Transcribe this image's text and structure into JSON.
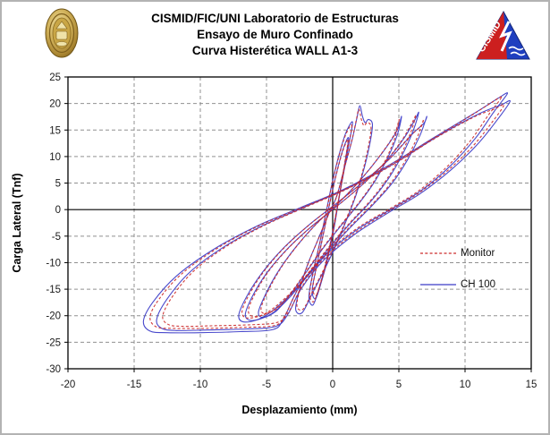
{
  "window": {
    "background": "#ffffff",
    "border_color": "#b3b3b3"
  },
  "header": {
    "line1": "CISMID/FIC/UNI Laboratorio de Estructuras",
    "line2": "Ensayo de Muro Confinado",
    "line3": "Curva Histerética WALL A1-3",
    "left_logo": "uni-gold-seal",
    "right_logo": "cismid-triangle-logo",
    "cismid_logo_text": "CISMID",
    "logo_colors": {
      "seal_gold": "#c9a646",
      "seal_dark": "#8a6a1f",
      "cismid_red": "#cc1f1f",
      "cismid_blue": "#1f3fbf"
    }
  },
  "chart_data": {
    "type": "line",
    "subtype": "hysteresis-loops",
    "title": "Curva Histerética WALL A1-3",
    "xlabel": "Desplazamiento (mm)",
    "ylabel": "Carga Lateral (Tnf)",
    "xlim": [
      -20,
      15
    ],
    "ylim": [
      -30,
      25
    ],
    "x_ticks": [
      -20,
      -15,
      -10,
      -5,
      0,
      5,
      10,
      15
    ],
    "y_ticks": [
      25,
      20,
      15,
      10,
      5,
      0,
      -5,
      -10,
      -15,
      -20,
      -25,
      -30
    ],
    "grid": "dashed",
    "grid_color": "#909090",
    "axis_color": "#000000",
    "legend": {
      "position": "inside-right",
      "entries": [
        {
          "label": "Monitor",
          "color": "#cc2b2b",
          "dash": true
        },
        {
          "label": "CH 100",
          "color": "#3a3ac8",
          "dash": false
        }
      ]
    },
    "series": [
      {
        "name": "CH 100",
        "color": "#3a3ac8",
        "style": "solid",
        "scale": 1.0
      },
      {
        "name": "Monitor",
        "color": "#cc2b2b",
        "style": "dashed",
        "scale": 0.965
      }
    ],
    "loops": [
      {
        "name": "cycle-13mm-a",
        "points": [
          [
            13.2,
            21.9
          ],
          [
            12.2,
            18.5
          ],
          [
            10.8,
            13.5
          ],
          [
            9.0,
            8.5
          ],
          [
            6.8,
            3.8
          ],
          [
            4.5,
            0.2
          ],
          [
            2.0,
            -3.5
          ],
          [
            -0.5,
            -8.5
          ],
          [
            -2.5,
            -14.5
          ],
          [
            -3.7,
            -20.5
          ],
          [
            -4.5,
            -22.6
          ],
          [
            -7.0,
            -23.0
          ],
          [
            -10.0,
            -23.2
          ],
          [
            -12.5,
            -23.2
          ],
          [
            -13.8,
            -22.9
          ],
          [
            -14.3,
            -21.0
          ],
          [
            -13.6,
            -17.5
          ],
          [
            -11.8,
            -12.5
          ],
          [
            -9.0,
            -7.5
          ],
          [
            -5.8,
            -3.2
          ],
          [
            -2.5,
            0.3
          ],
          [
            0.8,
            3.8
          ],
          [
            4.2,
            8.3
          ],
          [
            7.8,
            13.8
          ],
          [
            10.8,
            18.3
          ],
          [
            12.5,
            21.0
          ]
        ]
      },
      {
        "name": "cycle-13mm-b",
        "points": [
          [
            13.4,
            20.4
          ],
          [
            12.4,
            16.8
          ],
          [
            10.9,
            12.2
          ],
          [
            8.9,
            7.4
          ],
          [
            6.6,
            3.0
          ],
          [
            4.2,
            -0.6
          ],
          [
            1.7,
            -4.6
          ],
          [
            -0.7,
            -9.6
          ],
          [
            -2.4,
            -15.0
          ],
          [
            -3.4,
            -19.8
          ],
          [
            -4.3,
            -22.0
          ],
          [
            -6.5,
            -22.5
          ],
          [
            -9.5,
            -22.7
          ],
          [
            -11.8,
            -22.8
          ],
          [
            -12.9,
            -22.4
          ],
          [
            -13.3,
            -20.7
          ],
          [
            -12.5,
            -16.8
          ],
          [
            -10.8,
            -11.8
          ],
          [
            -8.2,
            -7.0
          ],
          [
            -5.2,
            -2.9
          ],
          [
            -2.0,
            0.6
          ],
          [
            1.2,
            4.1
          ],
          [
            4.6,
            8.6
          ],
          [
            8.0,
            13.9
          ],
          [
            11.0,
            18.0
          ],
          [
            12.7,
            19.7
          ]
        ]
      },
      {
        "name": "cycle-7mm",
        "points": [
          [
            7.1,
            17.5
          ],
          [
            6.6,
            14.0
          ],
          [
            5.7,
            9.6
          ],
          [
            4.5,
            5.0
          ],
          [
            3.0,
            0.8
          ],
          [
            1.4,
            -3.2
          ],
          [
            -0.3,
            -7.8
          ],
          [
            -2.0,
            -12.8
          ],
          [
            -3.6,
            -17.0
          ],
          [
            -5.2,
            -20.2
          ],
          [
            -6.6,
            -21.2
          ],
          [
            -7.1,
            -20.0
          ],
          [
            -6.5,
            -16.4
          ],
          [
            -5.3,
            -11.8
          ],
          [
            -3.7,
            -7.2
          ],
          [
            -1.8,
            -2.9
          ],
          [
            0.3,
            1.2
          ],
          [
            2.4,
            5.4
          ],
          [
            4.4,
            9.8
          ],
          [
            6.0,
            14.2
          ],
          [
            6.9,
            16.3
          ]
        ]
      },
      {
        "name": "cycle-6.5mm",
        "points": [
          [
            6.5,
            18.3
          ],
          [
            6.1,
            15.0
          ],
          [
            5.3,
            10.5
          ],
          [
            4.2,
            5.8
          ],
          [
            2.9,
            1.6
          ],
          [
            1.4,
            -2.4
          ],
          [
            -0.2,
            -7.0
          ],
          [
            -1.8,
            -12.0
          ],
          [
            -3.2,
            -16.4
          ],
          [
            -4.6,
            -19.6
          ],
          [
            -6.0,
            -20.9
          ],
          [
            -6.6,
            -19.9
          ],
          [
            -6.1,
            -16.5
          ],
          [
            -5.0,
            -12.0
          ],
          [
            -3.5,
            -7.6
          ],
          [
            -1.7,
            -3.4
          ],
          [
            0.3,
            0.6
          ],
          [
            2.2,
            4.6
          ],
          [
            4.0,
            9.0
          ],
          [
            5.4,
            13.5
          ],
          [
            6.2,
            16.9
          ]
        ]
      },
      {
        "name": "cycle-5mm",
        "points": [
          [
            5.2,
            17.6
          ],
          [
            4.9,
            14.2
          ],
          [
            4.2,
            10.0
          ],
          [
            3.2,
            5.4
          ],
          [
            2.0,
            1.2
          ],
          [
            0.7,
            -2.8
          ],
          [
            -0.7,
            -7.2
          ],
          [
            -2.0,
            -11.8
          ],
          [
            -3.2,
            -16.0
          ],
          [
            -4.3,
            -19.2
          ],
          [
            -5.3,
            -20.3
          ],
          [
            -5.6,
            -19.2
          ],
          [
            -5.0,
            -15.6
          ],
          [
            -4.0,
            -11.2
          ],
          [
            -2.7,
            -6.8
          ],
          [
            -1.2,
            -2.6
          ],
          [
            0.5,
            1.4
          ],
          [
            2.1,
            5.6
          ],
          [
            3.6,
            10.2
          ],
          [
            4.8,
            14.6
          ]
        ]
      },
      {
        "name": "cycle-2mm-spike",
        "points": [
          [
            0.3,
            2.5
          ],
          [
            0.9,
            8.0
          ],
          [
            1.5,
            13.5
          ],
          [
            1.85,
            17.5
          ],
          [
            2.05,
            19.6
          ],
          [
            2.25,
            17.6
          ],
          [
            2.45,
            16.4
          ],
          [
            2.7,
            17.0
          ],
          [
            3.0,
            16.2
          ],
          [
            2.85,
            13.0
          ],
          [
            2.4,
            8.0
          ],
          [
            1.8,
            3.0
          ],
          [
            1.1,
            -1.6
          ],
          [
            0.3,
            -6.4
          ],
          [
            -0.6,
            -11.2
          ],
          [
            -1.5,
            -15.6
          ],
          [
            -2.3,
            -19.4
          ],
          [
            -2.8,
            -18.8
          ],
          [
            -2.5,
            -15.0
          ],
          [
            -1.9,
            -10.4
          ],
          [
            -1.1,
            -5.6
          ],
          [
            -0.3,
            -0.8
          ]
        ]
      },
      {
        "name": "cycle-1.5mm",
        "points": [
          [
            1.5,
            16.5
          ],
          [
            1.2,
            12.0
          ],
          [
            0.8,
            6.5
          ],
          [
            0.35,
            0.5
          ],
          [
            -0.1,
            -5.5
          ],
          [
            -0.6,
            -11.0
          ],
          [
            -1.1,
            -15.5
          ],
          [
            -1.5,
            -18.0
          ],
          [
            -1.8,
            -16.5
          ],
          [
            -1.5,
            -12.0
          ],
          [
            -1.0,
            -6.5
          ],
          [
            -0.5,
            -0.5
          ],
          [
            0.0,
            5.5
          ],
          [
            0.5,
            10.5
          ],
          [
            1.0,
            14.5
          ]
        ]
      },
      {
        "name": "cycle-1.2mm",
        "points": [
          [
            1.2,
            13.5
          ],
          [
            0.9,
            8.5
          ],
          [
            0.5,
            2.5
          ],
          [
            0.1,
            -3.5
          ],
          [
            -0.4,
            -9.5
          ],
          [
            -0.9,
            -14.0
          ],
          [
            -1.3,
            -16.8
          ],
          [
            -1.55,
            -15.2
          ],
          [
            -1.2,
            -10.5
          ],
          [
            -0.7,
            -4.5
          ],
          [
            -0.2,
            1.5
          ],
          [
            0.3,
            7.0
          ],
          [
            0.8,
            11.5
          ]
        ]
      }
    ]
  }
}
